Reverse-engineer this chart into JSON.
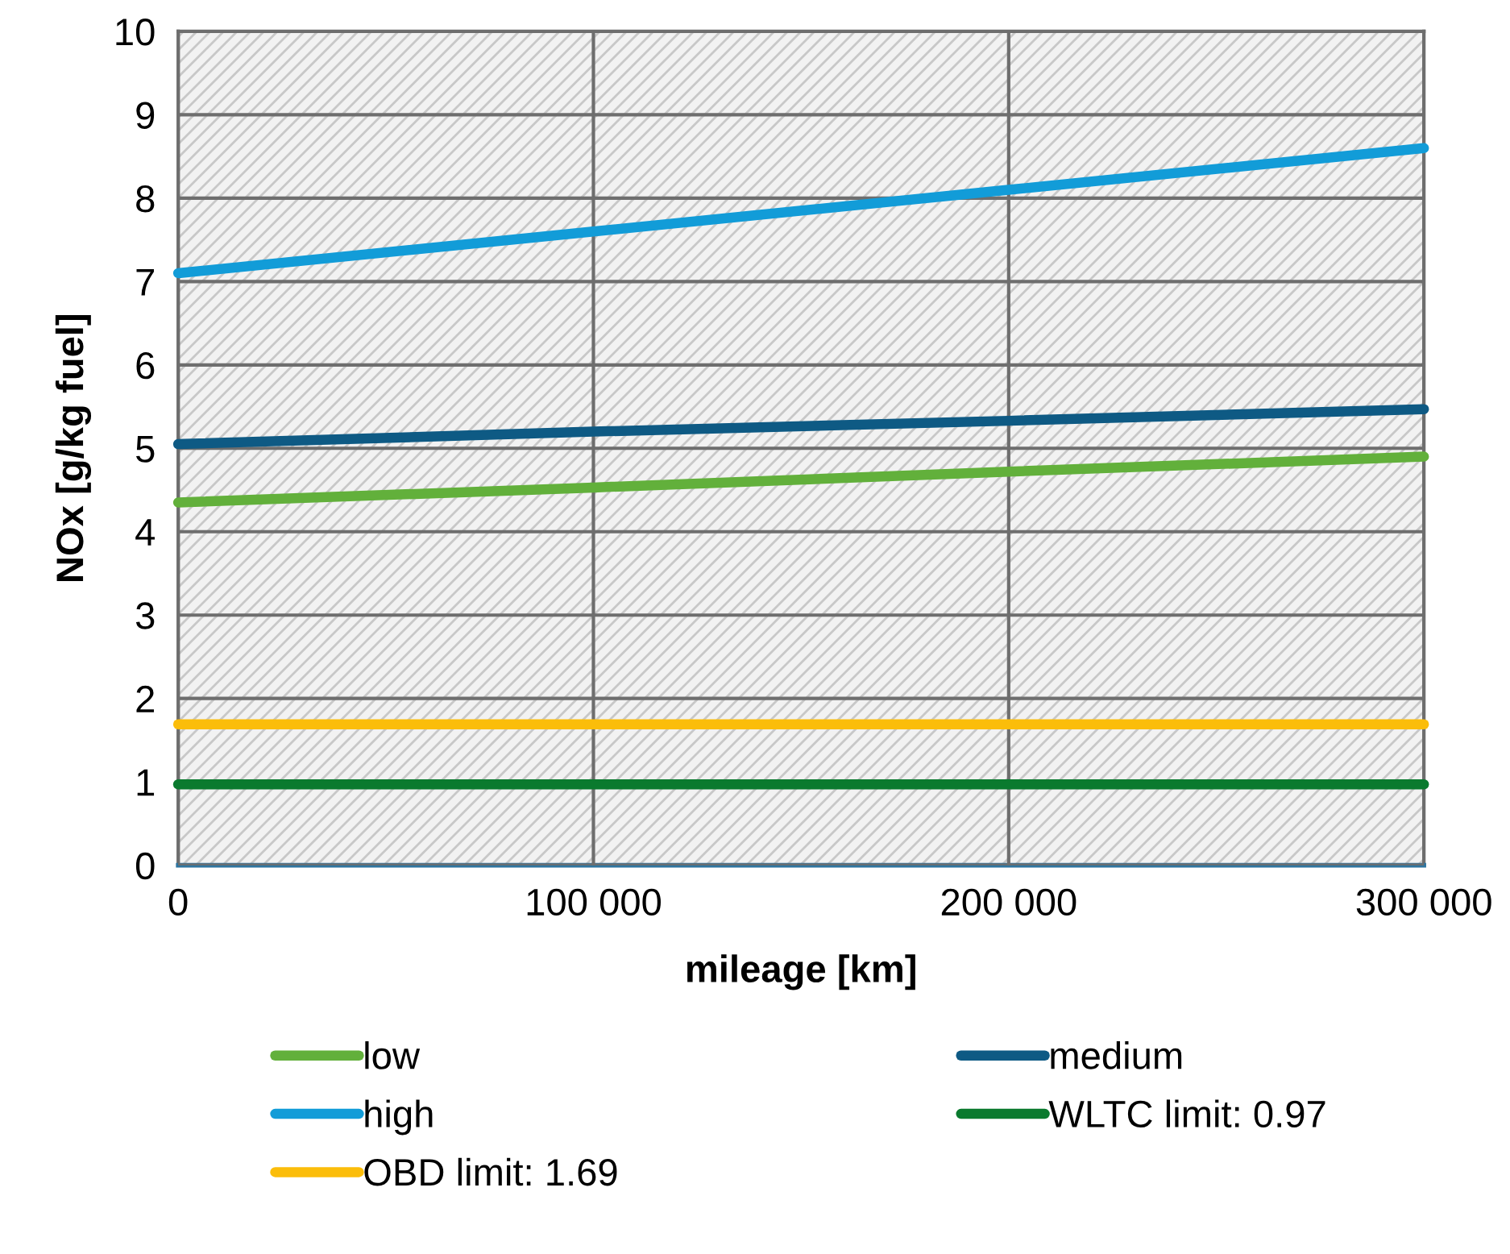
{
  "chart_data": {
    "type": "line",
    "xlabel": "mileage [km]",
    "ylabel": "NOx [g/kg fuel]",
    "x": [
      0,
      100000,
      200000,
      300000
    ],
    "series": [
      {
        "name": "low",
        "color": "#62b03b",
        "values": [
          4.35,
          4.53,
          4.72,
          4.9
        ]
      },
      {
        "name": "medium",
        "color": "#0e5a84",
        "values": [
          5.05,
          5.2,
          5.33,
          5.47
        ]
      },
      {
        "name": "high",
        "color": "#129cd8",
        "values": [
          7.1,
          7.6,
          8.1,
          8.6
        ]
      },
      {
        "name": "WLTC limit: 0.97",
        "color": "#0a7a2e",
        "values": [
          0.97,
          0.97,
          0.97,
          0.97
        ]
      },
      {
        "name": "OBD limit: 1.69",
        "color": "#fbbd0a",
        "values": [
          1.69,
          1.69,
          1.69,
          1.69
        ]
      }
    ],
    "xlim": [
      0,
      300000
    ],
    "xticks": [
      0,
      {
        "value": 100000,
        "label": "100 000"
      },
      {
        "value": 200000,
        "label": "200 000"
      },
      {
        "value": 300000,
        "label": "300 000"
      }
    ],
    "ylim": [
      0,
      10
    ],
    "yticks": [
      0,
      1,
      2,
      3,
      4,
      5,
      6,
      7,
      8,
      9,
      10
    ],
    "grid": true,
    "legend": "bottom",
    "marker": "none",
    "line_style": "solid"
  }
}
